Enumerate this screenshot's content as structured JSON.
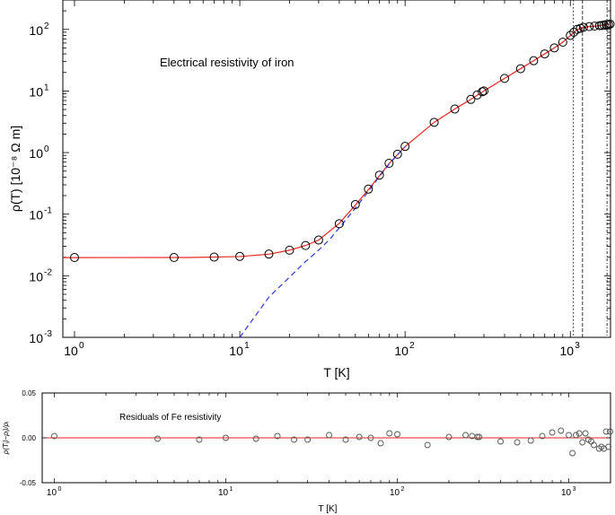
{
  "chart_data": [
    {
      "type": "line",
      "title": "Electrical resistivity of iron",
      "xlabel": "T [K]",
      "ylabel": "ρ(T) [10⁻⁸ Ω m]",
      "xscale": "log",
      "yscale": "log",
      "xlim": [
        0.85,
        1750
      ],
      "ylim": [
        0.001,
        300
      ],
      "x_ticks": [
        {
          "value": 1,
          "base": "10",
          "exp": "0"
        },
        {
          "value": 10,
          "base": "10",
          "exp": "1"
        },
        {
          "value": 100,
          "base": "10",
          "exp": "2"
        },
        {
          "value": 1000,
          "base": "10",
          "exp": "3"
        }
      ],
      "y_ticks": [
        {
          "value": 0.001,
          "base": "10",
          "exp": "-3"
        },
        {
          "value": 0.01,
          "base": "10",
          "exp": "-2"
        },
        {
          "value": 0.1,
          "base": "10",
          "exp": "-1"
        },
        {
          "value": 1,
          "base": "10",
          "exp": "0"
        },
        {
          "value": 10,
          "base": "10",
          "exp": "1"
        },
        {
          "value": 100,
          "base": "10",
          "exp": "2"
        }
      ],
      "vertical_lines": [
        1043,
        1185,
        1667
      ],
      "series": [
        {
          "kind": "measured",
          "marker": "circle",
          "points": [
            [
              1,
              0.0198
            ],
            [
              4,
              0.0198
            ],
            [
              7,
              0.0201
            ],
            [
              10,
              0.0206
            ],
            [
              15,
              0.0225
            ],
            [
              20,
              0.026
            ],
            [
              25,
              0.031
            ],
            [
              30,
              0.038
            ],
            [
              40,
              0.07
            ],
            [
              50,
              0.143
            ],
            [
              60,
              0.255
            ],
            [
              70,
              0.43
            ],
            [
              80,
              0.67
            ],
            [
              90,
              0.94
            ],
            [
              100,
              1.26
            ],
            [
              150,
              3.1
            ],
            [
              200,
              5.1
            ],
            [
              250,
              7.3
            ],
            [
              273,
              8.6
            ],
            [
              293,
              9.7
            ],
            [
              300,
              10.0
            ],
            [
              400,
              16.0
            ],
            [
              500,
              23.0
            ],
            [
              600,
              31.0
            ],
            [
              700,
              40.0
            ],
            [
              800,
              50.0
            ],
            [
              900,
              62.0
            ],
            [
              1000,
              80.0
            ],
            [
              1050,
              90.0
            ],
            [
              1100,
              100.0
            ],
            [
              1150,
              104.0
            ],
            [
              1200,
              108.0
            ],
            [
              1300,
              111.0
            ],
            [
              1400,
              113.0
            ],
            [
              1500,
              115.0
            ],
            [
              1550,
              116.0
            ],
            [
              1600,
              118.0
            ],
            [
              1650,
              120.0
            ],
            [
              1700,
              121.0
            ],
            [
              1740,
              122.0
            ]
          ]
        },
        {
          "kind": "fit",
          "color": "#e8261f",
          "style": "solid",
          "points": [
            [
              0.85,
              0.0197
            ],
            [
              5,
              0.0198
            ],
            [
              10,
              0.0205
            ],
            [
              15,
              0.0224
            ],
            [
              20,
              0.026
            ],
            [
              25,
              0.031
            ],
            [
              30,
              0.038
            ],
            [
              40,
              0.071
            ],
            [
              50,
              0.14
            ],
            [
              60,
              0.25
            ],
            [
              70,
              0.42
            ],
            [
              80,
              0.66
            ],
            [
              90,
              0.93
            ],
            [
              100,
              1.25
            ],
            [
              150,
              3.1
            ],
            [
              200,
              5.1
            ],
            [
              250,
              7.3
            ],
            [
              300,
              10.0
            ],
            [
              400,
              16.0
            ],
            [
              500,
              23.0
            ],
            [
              600,
              31.0
            ],
            [
              700,
              40.0
            ],
            [
              800,
              50.0
            ],
            [
              900,
              62.0
            ],
            [
              1000,
              79.0
            ],
            [
              1043,
              88.0
            ],
            [
              1100,
              99.0
            ],
            [
              1185,
              107.0
            ],
            [
              1300,
              111.0
            ],
            [
              1400,
              113.0
            ],
            [
              1500,
              115.0
            ],
            [
              1600,
              118.0
            ],
            [
              1667,
              120.0
            ],
            [
              1750,
              122.0
            ]
          ]
        },
        {
          "kind": "phonon",
          "color": "#2b38d9",
          "style": "dashed",
          "points": [
            [
              10,
              0.001
            ],
            [
              15,
              0.0045
            ],
            [
              20,
              0.0095
            ],
            [
              25,
              0.017
            ],
            [
              30,
              0.026
            ],
            [
              35,
              0.039
            ],
            [
              40,
              0.06
            ],
            [
              50,
              0.125
            ],
            [
              60,
              0.235
            ],
            [
              70,
              0.41
            ],
            [
              80,
              0.65
            ],
            [
              90,
              0.92
            ],
            [
              100,
              1.24
            ]
          ]
        }
      ]
    },
    {
      "type": "scatter",
      "title": "Residuals of Fe resistivity",
      "xlabel": "T [K]",
      "ylabel": "ρ(Tᵢ)−ρᵢ)/ρᵢ",
      "xscale": "log",
      "xlim": [
        0.85,
        1750
      ],
      "ylim": [
        -0.05,
        0.05
      ],
      "x_ticks": [
        {
          "value": 1,
          "base": "10",
          "exp": "0"
        },
        {
          "value": 10,
          "base": "10",
          "exp": "1"
        },
        {
          "value": 100,
          "base": "10",
          "exp": "2"
        },
        {
          "value": 1000,
          "base": "10",
          "exp": "3"
        }
      ],
      "y_ticks": [
        {
          "value": 0.05,
          "label": "0.05"
        },
        {
          "value": 0.0,
          "label": "0.00"
        },
        {
          "value": -0.05,
          "label": "-0.05"
        }
      ],
      "zero_line_color": "#e8261f",
      "points": [
        [
          1,
          0.002
        ],
        [
          4,
          -0.001
        ],
        [
          7,
          -0.002
        ],
        [
          10,
          0.0
        ],
        [
          15,
          -0.001
        ],
        [
          20,
          0.002
        ],
        [
          25,
          -0.002
        ],
        [
          30,
          -0.002
        ],
        [
          40,
          0.003
        ],
        [
          50,
          -0.002
        ],
        [
          60,
          0.001
        ],
        [
          70,
          0.0
        ],
        [
          80,
          -0.006
        ],
        [
          90,
          0.005
        ],
        [
          100,
          0.004
        ],
        [
          150,
          -0.008
        ],
        [
          200,
          0.001
        ],
        [
          250,
          0.003
        ],
        [
          273,
          0.002
        ],
        [
          293,
          0.001
        ],
        [
          300,
          0.001
        ],
        [
          400,
          -0.004
        ],
        [
          500,
          -0.005
        ],
        [
          600,
          -0.003
        ],
        [
          700,
          0.002
        ],
        [
          800,
          0.006
        ],
        [
          900,
          0.008
        ],
        [
          1000,
          0.003
        ],
        [
          1050,
          -0.017
        ],
        [
          1100,
          0.003
        ],
        [
          1150,
          0.005
        ],
        [
          1200,
          -0.005
        ],
        [
          1250,
          0.005
        ],
        [
          1300,
          -0.002
        ],
        [
          1350,
          -0.004
        ],
        [
          1400,
          -0.008
        ],
        [
          1500,
          -0.012
        ],
        [
          1550,
          -0.01
        ],
        [
          1600,
          -0.012
        ],
        [
          1650,
          0.007
        ],
        [
          1700,
          -0.01
        ],
        [
          1740,
          0.007
        ]
      ]
    }
  ]
}
